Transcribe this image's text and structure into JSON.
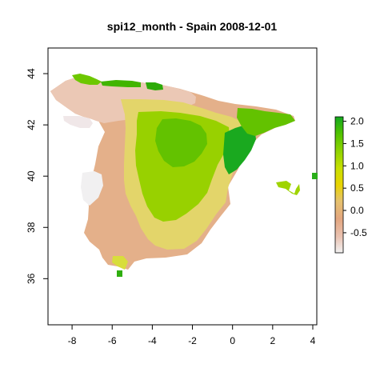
{
  "title": "spi12_month - Spain 2008-12-01",
  "map": {
    "x_ticks": [
      "-8",
      "-6",
      "-4",
      "-2",
      "0",
      "2",
      "4"
    ],
    "y_ticks": [
      "44",
      "42",
      "40",
      "38",
      "36"
    ],
    "xlim": [
      -9.2,
      4.2
    ],
    "ylim": [
      34.2,
      45.0
    ]
  },
  "legend": {
    "ticks": [
      "2.0",
      "1.5",
      "1.0",
      "0.5",
      "0.0",
      "-0.5"
    ],
    "tick_values": [
      2.0,
      1.5,
      1.0,
      0.5,
      0.0,
      -0.5
    ],
    "range": [
      -0.95,
      2.1
    ],
    "colors": [
      "#f2f2f2",
      "#eac2b1",
      "#e3a67f",
      "#e6c26d",
      "#e8d400",
      "#c9e000",
      "#8ed300",
      "#4fc200",
      "#13a81f"
    ]
  }
}
